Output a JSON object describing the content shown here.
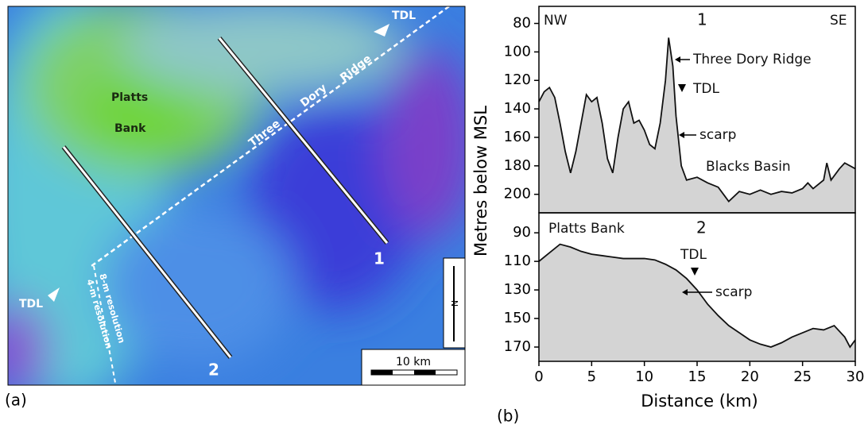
{
  "map": {
    "label": "(a)",
    "bank": [
      "Platts",
      "Bank"
    ],
    "ridge": [
      "Three",
      "Dory",
      "Ridge"
    ],
    "tdl": [
      "TDL",
      "TDL"
    ],
    "profiles": [
      "1",
      "2"
    ],
    "scale": "10 km",
    "resolution": [
      "8-m resolution",
      "4-m resolution"
    ],
    "north": "N"
  },
  "panel_b": {
    "label": "(b)",
    "y_label": "Metres below MSL"
  },
  "chart_data": [
    {
      "type": "area",
      "title": "1",
      "corner_labels": [
        "NW",
        "SE"
      ],
      "annotations": [
        "Three Dory Ridge",
        "TDL",
        "scarp",
        "Blacks Basin"
      ],
      "x": [
        0,
        0.5,
        1,
        1.5,
        2,
        2.5,
        3,
        3.5,
        4,
        4.5,
        5,
        5.5,
        6,
        6.5,
        7,
        7.5,
        8,
        8.5,
        9,
        9.5,
        10,
        10.5,
        11,
        11.5,
        12,
        12.3,
        12.7,
        13,
        13.5,
        14,
        15,
        16,
        17,
        17.5,
        18,
        19,
        20,
        21,
        22,
        23,
        24,
        25,
        25.5,
        26,
        27,
        27.3,
        27.7,
        28.5,
        29,
        30
      ],
      "values": [
        135,
        128,
        125,
        132,
        150,
        170,
        185,
        170,
        150,
        130,
        135,
        132,
        150,
        175,
        185,
        160,
        140,
        135,
        150,
        148,
        155,
        165,
        168,
        150,
        120,
        90,
        110,
        145,
        180,
        190,
        188,
        192,
        195,
        200,
        205,
        198,
        200,
        197,
        200,
        198,
        199,
        196,
        192,
        196,
        190,
        178,
        190,
        182,
        178,
        182
      ],
      "color": "#d4d4d4",
      "line_color": "#111111",
      "xlim": [
        0,
        30
      ],
      "ylim": [
        213,
        68
      ],
      "yticks": [
        80,
        100,
        120,
        140,
        160,
        180,
        200
      ]
    },
    {
      "type": "area",
      "title": "2",
      "annotations": [
        "Platts Bank",
        "TDL",
        "scarp"
      ],
      "x_label": "Distance (km)",
      "x": [
        0,
        1,
        2,
        3,
        4,
        5,
        6,
        7,
        8,
        10,
        11,
        12,
        13,
        14,
        15,
        16,
        17,
        18,
        19,
        20,
        21,
        22,
        23,
        24,
        25,
        26,
        27,
        28,
        29,
        29.5,
        30
      ],
      "values": [
        110,
        104,
        98,
        100,
        103,
        105,
        106,
        107,
        108,
        108,
        109,
        112,
        116,
        122,
        130,
        140,
        148,
        155,
        160,
        165,
        168,
        170,
        167,
        163,
        160,
        157,
        158,
        155,
        163,
        170,
        165
      ],
      "color": "#d4d4d4",
      "line_color": "#111111",
      "xlim": [
        0,
        30
      ],
      "ylim": [
        180,
        76
      ],
      "yticks": [
        90,
        110,
        130,
        150,
        170
      ],
      "xticks": [
        0,
        5,
        10,
        15,
        20,
        25,
        30
      ]
    }
  ]
}
